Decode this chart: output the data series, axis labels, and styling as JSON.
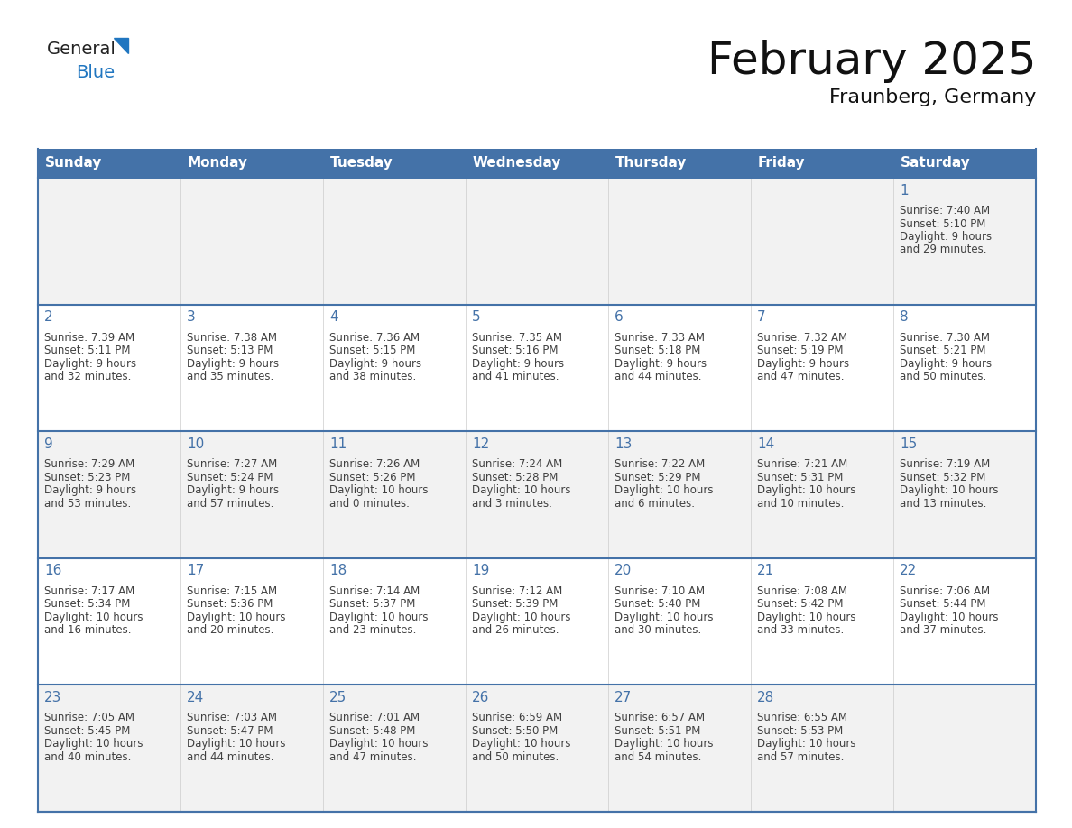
{
  "title": "February 2025",
  "subtitle": "Fraunberg, Germany",
  "days_of_week": [
    "Sunday",
    "Monday",
    "Tuesday",
    "Wednesday",
    "Thursday",
    "Friday",
    "Saturday"
  ],
  "header_bg": "#4472A8",
  "header_text": "#FFFFFF",
  "row0_bg": "#F2F2F2",
  "row1_bg": "#FFFFFF",
  "border_color": "#4472A8",
  "day_number_color": "#4472A8",
  "cell_text_color": "#404040",
  "calendar_data": [
    [
      null,
      null,
      null,
      null,
      null,
      null,
      {
        "day": "1",
        "sunrise": "7:40 AM",
        "sunset": "5:10 PM",
        "daylight": "9 hours",
        "daylight2": "and 29 minutes."
      }
    ],
    [
      {
        "day": "2",
        "sunrise": "7:39 AM",
        "sunset": "5:11 PM",
        "daylight": "9 hours",
        "daylight2": "and 32 minutes."
      },
      {
        "day": "3",
        "sunrise": "7:38 AM",
        "sunset": "5:13 PM",
        "daylight": "9 hours",
        "daylight2": "and 35 minutes."
      },
      {
        "day": "4",
        "sunrise": "7:36 AM",
        "sunset": "5:15 PM",
        "daylight": "9 hours",
        "daylight2": "and 38 minutes."
      },
      {
        "day": "5",
        "sunrise": "7:35 AM",
        "sunset": "5:16 PM",
        "daylight": "9 hours",
        "daylight2": "and 41 minutes."
      },
      {
        "day": "6",
        "sunrise": "7:33 AM",
        "sunset": "5:18 PM",
        "daylight": "9 hours",
        "daylight2": "and 44 minutes."
      },
      {
        "day": "7",
        "sunrise": "7:32 AM",
        "sunset": "5:19 PM",
        "daylight": "9 hours",
        "daylight2": "and 47 minutes."
      },
      {
        "day": "8",
        "sunrise": "7:30 AM",
        "sunset": "5:21 PM",
        "daylight": "9 hours",
        "daylight2": "and 50 minutes."
      }
    ],
    [
      {
        "day": "9",
        "sunrise": "7:29 AM",
        "sunset": "5:23 PM",
        "daylight": "9 hours",
        "daylight2": "and 53 minutes."
      },
      {
        "day": "10",
        "sunrise": "7:27 AM",
        "sunset": "5:24 PM",
        "daylight": "9 hours",
        "daylight2": "and 57 minutes."
      },
      {
        "day": "11",
        "sunrise": "7:26 AM",
        "sunset": "5:26 PM",
        "daylight": "10 hours",
        "daylight2": "and 0 minutes."
      },
      {
        "day": "12",
        "sunrise": "7:24 AM",
        "sunset": "5:28 PM",
        "daylight": "10 hours",
        "daylight2": "and 3 minutes."
      },
      {
        "day": "13",
        "sunrise": "7:22 AM",
        "sunset": "5:29 PM",
        "daylight": "10 hours",
        "daylight2": "and 6 minutes."
      },
      {
        "day": "14",
        "sunrise": "7:21 AM",
        "sunset": "5:31 PM",
        "daylight": "10 hours",
        "daylight2": "and 10 minutes."
      },
      {
        "day": "15",
        "sunrise": "7:19 AM",
        "sunset": "5:32 PM",
        "daylight": "10 hours",
        "daylight2": "and 13 minutes."
      }
    ],
    [
      {
        "day": "16",
        "sunrise": "7:17 AM",
        "sunset": "5:34 PM",
        "daylight": "10 hours",
        "daylight2": "and 16 minutes."
      },
      {
        "day": "17",
        "sunrise": "7:15 AM",
        "sunset": "5:36 PM",
        "daylight": "10 hours",
        "daylight2": "and 20 minutes."
      },
      {
        "day": "18",
        "sunrise": "7:14 AM",
        "sunset": "5:37 PM",
        "daylight": "10 hours",
        "daylight2": "and 23 minutes."
      },
      {
        "day": "19",
        "sunrise": "7:12 AM",
        "sunset": "5:39 PM",
        "daylight": "10 hours",
        "daylight2": "and 26 minutes."
      },
      {
        "day": "20",
        "sunrise": "7:10 AM",
        "sunset": "5:40 PM",
        "daylight": "10 hours",
        "daylight2": "and 30 minutes."
      },
      {
        "day": "21",
        "sunrise": "7:08 AM",
        "sunset": "5:42 PM",
        "daylight": "10 hours",
        "daylight2": "and 33 minutes."
      },
      {
        "day": "22",
        "sunrise": "7:06 AM",
        "sunset": "5:44 PM",
        "daylight": "10 hours",
        "daylight2": "and 37 minutes."
      }
    ],
    [
      {
        "day": "23",
        "sunrise": "7:05 AM",
        "sunset": "5:45 PM",
        "daylight": "10 hours",
        "daylight2": "and 40 minutes."
      },
      {
        "day": "24",
        "sunrise": "7:03 AM",
        "sunset": "5:47 PM",
        "daylight": "10 hours",
        "daylight2": "and 44 minutes."
      },
      {
        "day": "25",
        "sunrise": "7:01 AM",
        "sunset": "5:48 PM",
        "daylight": "10 hours",
        "daylight2": "and 47 minutes."
      },
      {
        "day": "26",
        "sunrise": "6:59 AM",
        "sunset": "5:50 PM",
        "daylight": "10 hours",
        "daylight2": "and 50 minutes."
      },
      {
        "day": "27",
        "sunrise": "6:57 AM",
        "sunset": "5:51 PM",
        "daylight": "10 hours",
        "daylight2": "and 54 minutes."
      },
      {
        "day": "28",
        "sunrise": "6:55 AM",
        "sunset": "5:53 PM",
        "daylight": "10 hours",
        "daylight2": "and 57 minutes."
      },
      null
    ]
  ],
  "logo_general_color": "#222222",
  "logo_blue_color": "#2076C0",
  "logo_triangle_color": "#2076C0",
  "title_fontsize": 36,
  "subtitle_fontsize": 16,
  "header_fontsize": 11,
  "day_num_fontsize": 11,
  "cell_fontsize": 8.5
}
